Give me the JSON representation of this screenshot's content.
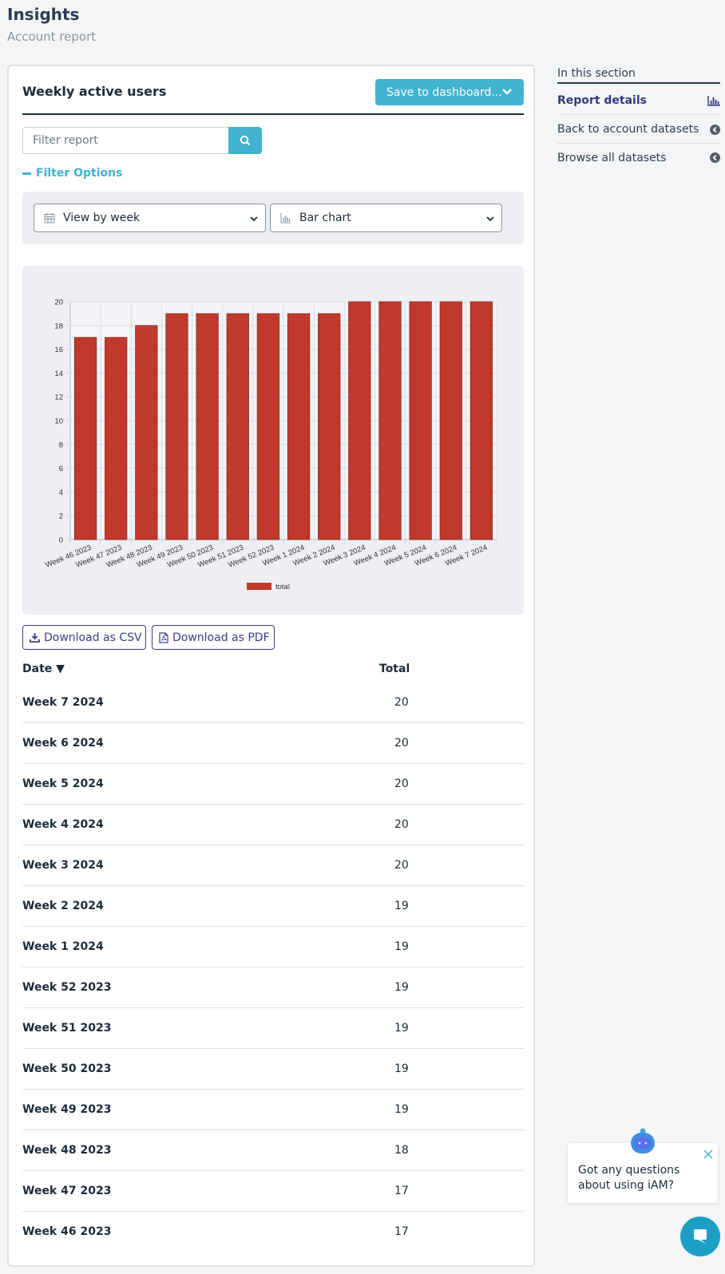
{
  "header": {
    "title": "Insights",
    "subtitle": "Account report"
  },
  "card": {
    "title": "Weekly active users",
    "save_label": "Save to dashboard...",
    "filter_placeholder": "Filter report",
    "filter_options_label": "Filter Options",
    "view_select": "View by week",
    "chart_select": "Bar chart",
    "download_csv": "Download as CSV",
    "download_pdf": "Download as PDF"
  },
  "table": {
    "headers": {
      "date": "Date ▼",
      "total": "Total"
    },
    "rows": [
      {
        "date": "Week 7 2024",
        "total": "20"
      },
      {
        "date": "Week 6 2024",
        "total": "20"
      },
      {
        "date": "Week 5 2024",
        "total": "20"
      },
      {
        "date": "Week 4 2024",
        "total": "20"
      },
      {
        "date": "Week 3 2024",
        "total": "20"
      },
      {
        "date": "Week 2 2024",
        "total": "19"
      },
      {
        "date": "Week 1 2024",
        "total": "19"
      },
      {
        "date": "Week 52 2023",
        "total": "19"
      },
      {
        "date": "Week 51 2023",
        "total": "19"
      },
      {
        "date": "Week 50 2023",
        "total": "19"
      },
      {
        "date": "Week 49 2023",
        "total": "19"
      },
      {
        "date": "Week 48 2023",
        "total": "18"
      },
      {
        "date": "Week 47 2023",
        "total": "17"
      },
      {
        "date": "Week 46 2023",
        "total": "17"
      }
    ]
  },
  "sidebar": {
    "heading": "In this section",
    "items": [
      {
        "label": "Report details",
        "icon": "bar-chart-icon"
      },
      {
        "label": "Back to account datasets",
        "icon": "back-arrow-icon"
      },
      {
        "label": "Browse all datasets",
        "icon": "back-arrow-icon"
      }
    ]
  },
  "chat": {
    "message": "Got any questions about using iAM?"
  },
  "colors": {
    "accent": "#41b3d0",
    "bar": "#c0392b",
    "link": "#3b3f86"
  },
  "chart_data": {
    "type": "bar",
    "categories": [
      "Week 46 2023",
      "Week 47 2023",
      "Week 48 2023",
      "Week 49 2023",
      "Week 50 2023",
      "Week 51 2023",
      "Week 52 2023",
      "Week 1 2024",
      "Week 2 2024",
      "Week 3 2024",
      "Week 4 2024",
      "Week 5 2024",
      "Week 6 2024",
      "Week 7 2024"
    ],
    "series": [
      {
        "name": "total",
        "values": [
          17,
          17,
          18,
          19,
          19,
          19,
          19,
          19,
          19,
          20,
          20,
          20,
          20,
          20
        ]
      }
    ],
    "ylim": [
      0,
      20
    ],
    "yticks": [
      0,
      2,
      4,
      6,
      8,
      10,
      12,
      14,
      16,
      18,
      20
    ],
    "grid": true,
    "legend": "bottom"
  }
}
